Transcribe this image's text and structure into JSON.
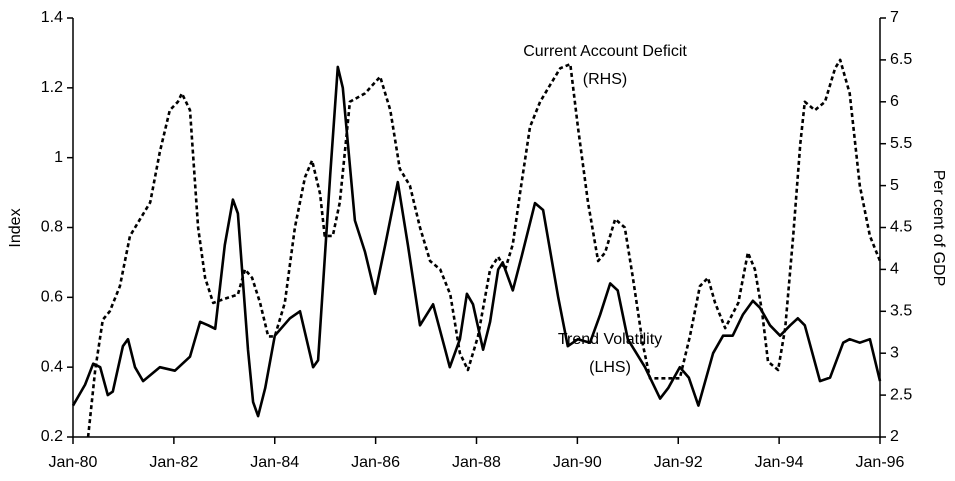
{
  "chart_data": {
    "type": "line",
    "y_label": "Index",
    "y2_label": "Per cent of GDP",
    "xlim": [
      1980,
      1996
    ],
    "xticks": [
      {
        "value": 1980,
        "label": "Jan-80"
      },
      {
        "value": 1982,
        "label": "Jan-82"
      },
      {
        "value": 1984,
        "label": "Jan-84"
      },
      {
        "value": 1986,
        "label": "Jan-86"
      },
      {
        "value": 1988,
        "label": "Jan-88"
      },
      {
        "value": 1990,
        "label": "Jan-90"
      },
      {
        "value": 1992,
        "label": "Jan-92"
      },
      {
        "value": 1994,
        "label": "Jan-94"
      },
      {
        "value": 1996,
        "label": "Jan-96"
      }
    ],
    "ylim": [
      0.2,
      1.4
    ],
    "yticks": [
      0.2,
      0.4,
      0.6,
      0.8,
      1,
      1.2,
      1.4
    ],
    "y2lim": [
      2,
      7
    ],
    "y2ticks": [
      2,
      2.5,
      3,
      3.5,
      4,
      4.5,
      5,
      5.5,
      6,
      6.5,
      7
    ],
    "series": [
      {
        "name": "Trend Volatility",
        "annotation": "(LHS)",
        "axis": "y",
        "color": "#000000",
        "dashed": false,
        "x": [
          1980.0,
          1980.24,
          1980.4,
          1980.54,
          1980.69,
          1980.79,
          1980.99,
          1981.09,
          1981.23,
          1981.39,
          1981.72,
          1982.02,
          1982.32,
          1982.52,
          1982.68,
          1982.82,
          1983.01,
          1983.17,
          1983.27,
          1983.47,
          1983.57,
          1983.67,
          1983.81,
          1984.0,
          1984.3,
          1984.5,
          1984.76,
          1984.86,
          1985.1,
          1985.25,
          1985.35,
          1985.59,
          1985.79,
          1985.99,
          1986.19,
          1986.44,
          1986.64,
          1986.88,
          1987.14,
          1987.38,
          1987.47,
          1987.67,
          1987.81,
          1987.93,
          1988.13,
          1988.27,
          1988.43,
          1988.52,
          1988.72,
          1988.9,
          1989.16,
          1989.32,
          1989.62,
          1989.81,
          1990.01,
          1990.25,
          1990.45,
          1990.65,
          1990.8,
          1991.0,
          1991.34,
          1991.64,
          1991.8,
          1992.03,
          1992.21,
          1992.4,
          1992.69,
          1992.89,
          1993.08,
          1993.28,
          1993.48,
          1993.62,
          1993.82,
          1994.02,
          1994.22,
          1994.37,
          1994.51,
          1994.81,
          1995.01,
          1995.27,
          1995.4,
          1995.6,
          1995.8,
          1996.0
        ],
        "values": [
          0.29,
          0.35,
          0.41,
          0.4,
          0.32,
          0.33,
          0.46,
          0.48,
          0.4,
          0.36,
          0.4,
          0.39,
          0.43,
          0.53,
          0.52,
          0.51,
          0.75,
          0.88,
          0.84,
          0.45,
          0.3,
          0.26,
          0.34,
          0.49,
          0.54,
          0.56,
          0.4,
          0.42,
          0.95,
          1.26,
          1.2,
          0.82,
          0.73,
          0.61,
          0.75,
          0.93,
          0.75,
          0.52,
          0.58,
          0.45,
          0.4,
          0.48,
          0.61,
          0.58,
          0.45,
          0.53,
          0.68,
          0.7,
          0.62,
          0.72,
          0.87,
          0.85,
          0.6,
          0.46,
          0.48,
          0.47,
          0.55,
          0.64,
          0.62,
          0.48,
          0.4,
          0.31,
          0.34,
          0.4,
          0.37,
          0.29,
          0.44,
          0.49,
          0.49,
          0.55,
          0.59,
          0.57,
          0.52,
          0.49,
          0.52,
          0.54,
          0.52,
          0.36,
          0.37,
          0.47,
          0.48,
          0.47,
          0.48,
          0.36
        ]
      },
      {
        "name": "Current Account Deficit",
        "annotation": "(RHS)",
        "axis": "y2",
        "color": "#000000",
        "dashed": true,
        "x": [
          1980.3,
          1980.44,
          1980.59,
          1980.73,
          1980.93,
          1981.13,
          1981.33,
          1981.53,
          1981.72,
          1981.92,
          1982.08,
          1982.16,
          1982.32,
          1982.48,
          1982.62,
          1982.78,
          1983.01,
          1983.27,
          1983.41,
          1983.55,
          1983.71,
          1983.87,
          1984.0,
          1984.2,
          1984.4,
          1984.6,
          1984.74,
          1984.9,
          1984.99,
          1985.15,
          1985.29,
          1985.49,
          1985.79,
          1986.09,
          1986.29,
          1986.48,
          1986.68,
          1986.88,
          1987.08,
          1987.28,
          1987.48,
          1987.67,
          1987.83,
          1988.03,
          1988.27,
          1988.43,
          1988.57,
          1988.72,
          1988.86,
          1989.06,
          1989.26,
          1989.46,
          1989.66,
          1989.86,
          1990.01,
          1990.21,
          1990.41,
          1990.55,
          1990.75,
          1990.94,
          1991.1,
          1991.3,
          1991.44,
          1991.74,
          1992.03,
          1992.23,
          1992.43,
          1992.59,
          1992.73,
          1992.93,
          1993.19,
          1993.38,
          1993.52,
          1993.66,
          1993.78,
          1993.98,
          1994.12,
          1994.28,
          1994.42,
          1994.51,
          1994.71,
          1994.91,
          1995.11,
          1995.21,
          1995.4,
          1995.6,
          1995.8,
          1996.0
        ],
        "values": [
          2.0,
          2.8,
          3.4,
          3.5,
          3.8,
          4.4,
          4.6,
          4.8,
          5.4,
          5.9,
          6.0,
          6.1,
          5.9,
          4.5,
          3.9,
          3.6,
          3.65,
          3.7,
          4.0,
          3.9,
          3.6,
          3.2,
          3.2,
          3.6,
          4.5,
          5.1,
          5.3,
          4.9,
          4.4,
          4.4,
          4.8,
          6.0,
          6.1,
          6.3,
          5.9,
          5.2,
          5.0,
          4.5,
          4.1,
          4.0,
          3.7,
          3.0,
          2.8,
          3.2,
          4.0,
          4.15,
          4.0,
          4.3,
          4.9,
          5.7,
          6.0,
          6.2,
          6.4,
          6.45,
          5.7,
          4.8,
          4.1,
          4.2,
          4.6,
          4.5,
          3.9,
          3.1,
          2.7,
          2.7,
          2.7,
          3.2,
          3.8,
          3.9,
          3.6,
          3.3,
          3.6,
          4.2,
          4.0,
          3.5,
          2.9,
          2.8,
          3.3,
          4.4,
          5.5,
          6.0,
          5.9,
          6.0,
          6.4,
          6.5,
          6.1,
          5.0,
          4.4,
          4.1
        ]
      }
    ]
  }
}
